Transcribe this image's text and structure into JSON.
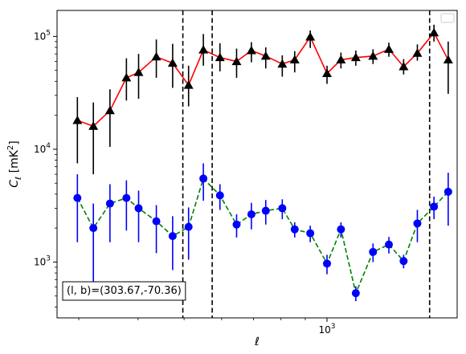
{
  "chart_data": {
    "type": "line",
    "title": "",
    "xlabel": "ℓ",
    "ylabel_main": "C",
    "ylabel_sub": "ℓ",
    "ylabel_unit": "[mK",
    "ylabel_exp": "2",
    "ylabel_close": "]",
    "x_scale": "log",
    "y_scale": "log",
    "xlim": [
      270,
      1880
    ],
    "ylim": [
      320,
      170000
    ],
    "x_ticks": [
      {
        "value": 1000,
        "base": "10",
        "exp": "3"
      }
    ],
    "y_ticks": [
      {
        "value": 1000,
        "base": "10",
        "exp": "3"
      },
      {
        "value": 10000,
        "base": "10",
        "exp": "4"
      },
      {
        "value": 100000,
        "base": "10",
        "exp": "5"
      }
    ],
    "legend_placement": "top-right",
    "annotation": "(l, b)=(303.67,-70.36)",
    "vlines": [
      497,
      573,
      1645
    ],
    "series": [
      {
        "marker": "triangle",
        "line_color": "#ff0000",
        "line_style": "solid",
        "marker_color": "#000000",
        "errorbar_color": "#000000",
        "x": [
          298,
          322,
          349,
          378,
          401,
          437,
          473,
          511,
          549,
          595,
          645,
          693,
          743,
          805,
          855,
          922,
          1000,
          1070,
          1150,
          1250,
          1350,
          1450,
          1550,
          1680,
          1800
        ],
        "y": [
          18000,
          16000,
          22000,
          43000,
          48000,
          66000,
          58000,
          37000,
          76000,
          65000,
          60000,
          75000,
          67000,
          57000,
          62000,
          99000,
          47000,
          62000,
          65000,
          67000,
          77000,
          54000,
          71000,
          108000,
          62000
        ],
        "err_lo": [
          10500,
          10000,
          11500,
          16000,
          20000,
          23000,
          23000,
          13000,
          21000,
          16000,
          17000,
          16000,
          15000,
          13000,
          14000,
          20000,
          9000,
          10000,
          10000,
          10000,
          11000,
          8000,
          10000,
          18000,
          31000
        ],
        "err_hi": [
          11000,
          10000,
          12000,
          21000,
          22000,
          28000,
          28000,
          18000,
          29000,
          22000,
          18000,
          14000,
          13000,
          11000,
          12000,
          14000,
          8000,
          10000,
          10000,
          10000,
          11000,
          9000,
          14000,
          19000,
          28000
        ]
      },
      {
        "marker": "circle",
        "line_color": "#008000",
        "line_style": "dashed",
        "marker_color": "#0000ff",
        "errorbar_color": "#0000ff",
        "x": [
          298,
          322,
          349,
          378,
          401,
          437,
          473,
          511,
          549,
          595,
          645,
          693,
          743,
          805,
          855,
          922,
          1000,
          1070,
          1150,
          1250,
          1350,
          1450,
          1550,
          1680,
          1800
        ],
        "y": [
          3700,
          2000,
          3300,
          3700,
          3000,
          2300,
          1700,
          2050,
          5500,
          3900,
          2150,
          2650,
          2850,
          3000,
          1950,
          1800,
          970,
          1950,
          530,
          1230,
          1430,
          1020,
          2200,
          3100,
          4200
        ],
        "err_lo": [
          2200,
          1330,
          1800,
          1800,
          1500,
          1100,
          850,
          1000,
          2000,
          1000,
          500,
          700,
          700,
          600,
          300,
          300,
          190,
          300,
          80,
          230,
          240,
          140,
          700,
          700,
          2100
        ],
        "err_hi": [
          2300,
          1300,
          1600,
          1600,
          1300,
          900,
          850,
          1000,
          2000,
          1000,
          500,
          700,
          700,
          600,
          300,
          300,
          190,
          300,
          80,
          230,
          240,
          140,
          700,
          700,
          2000
        ]
      }
    ]
  }
}
